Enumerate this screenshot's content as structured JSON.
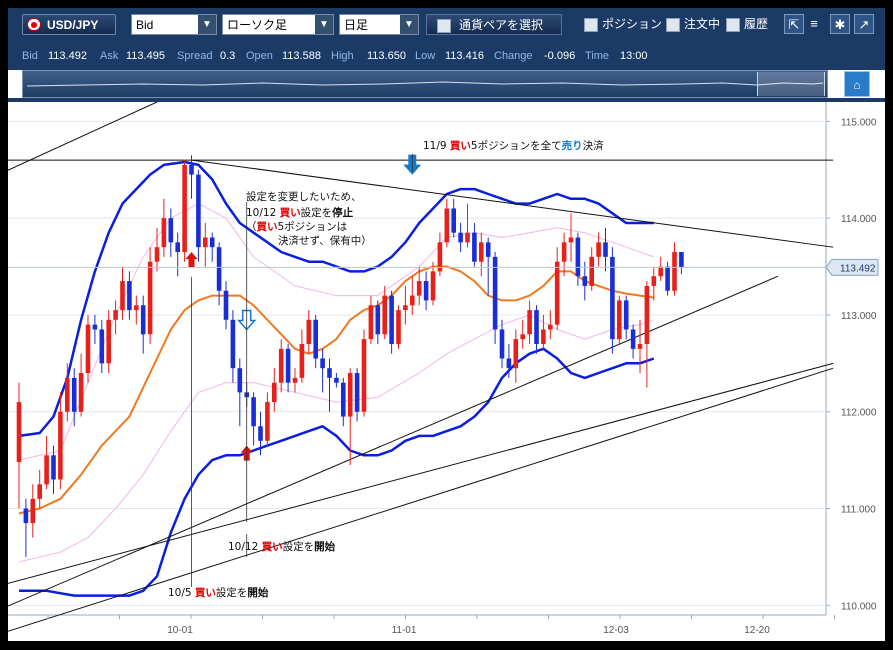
{
  "toolbar": {
    "pair": "USD/JPY",
    "price_type": "Bid",
    "chart_type": "ローソク足",
    "timeframe": "日足",
    "select_pair": "通貨ペアを選択",
    "positions": "ポジション",
    "orders": "注文中",
    "history": "履歴"
  },
  "quote": {
    "bid_label": "Bid",
    "bid": "113.492",
    "ask_label": "Ask",
    "ask": "113.495",
    "spread_label": "Spread",
    "spread": "0.3",
    "open_label": "Open",
    "open": "113.588",
    "high_label": "High",
    "high": "113.650",
    "low_label": "Low",
    "low": "113.416",
    "change_label": "Change",
    "change": "-0.096",
    "time_label": "Time",
    "time": "13:00"
  },
  "icons": {
    "flag": "usd-flag-icon",
    "dropdown": "chevron-down-icon",
    "chart_menu": "chart-menu-icon",
    "list": "list-icon",
    "settings": "gear-icon",
    "expand": "expand-icon",
    "home": "home-icon"
  },
  "colors": {
    "up": "#e8201c",
    "down": "#1a2ed8",
    "band_outer": "#0a1ee0",
    "band_inner": "#f4b6e8",
    "moving_average": "#f07820",
    "price_line": "#1e3c66",
    "annotation_red": "#e00000",
    "annotation_blue": "#1878c8"
  },
  "chart_data": {
    "type": "candlestick",
    "ylim": [
      109.9,
      115.2
    ],
    "yticks": [
      "115.000",
      "114.000",
      "113.000",
      "112.000",
      "111.000",
      "110.000"
    ],
    "xticks": [
      "10-01",
      "11-01",
      "12-03",
      "12-20"
    ],
    "current_price": "113.492",
    "candles": [
      [
        111.48,
        112.1,
        111.0,
        112.3
      ],
      [
        111.0,
        110.85,
        110.5,
        111.1
      ],
      [
        110.85,
        111.1,
        110.7,
        111.25
      ],
      [
        111.1,
        111.25,
        111.0,
        111.4
      ],
      [
        111.25,
        111.55,
        111.2,
        111.75
      ],
      [
        111.55,
        111.3,
        111.15,
        111.65
      ],
      [
        111.3,
        112.0,
        111.2,
        112.2
      ],
      [
        112.0,
        112.35,
        111.9,
        112.5
      ],
      [
        112.35,
        112.0,
        111.85,
        112.45
      ],
      [
        112.0,
        112.4,
        111.95,
        112.6
      ],
      [
        112.4,
        112.9,
        112.3,
        113.0
      ],
      [
        112.9,
        112.85,
        112.7,
        113.0
      ],
      [
        112.85,
        112.5,
        112.4,
        112.95
      ],
      [
        112.5,
        112.95,
        112.4,
        113.05
      ],
      [
        112.95,
        113.05,
        112.8,
        113.15
      ],
      [
        113.05,
        113.35,
        112.95,
        113.5
      ],
      [
        113.35,
        113.05,
        112.95,
        113.45
      ],
      [
        113.05,
        113.1,
        112.9,
        113.2
      ],
      [
        113.1,
        112.8,
        112.6,
        113.2
      ],
      [
        112.8,
        113.55,
        112.7,
        113.7
      ],
      [
        113.55,
        113.7,
        113.45,
        113.9
      ],
      [
        113.7,
        114.0,
        113.6,
        114.2
      ],
      [
        114.0,
        113.75,
        113.6,
        114.1
      ],
      [
        113.75,
        113.65,
        113.4,
        113.85
      ],
      [
        113.65,
        114.55,
        113.55,
        114.6
      ],
      [
        114.55,
        114.45,
        114.2,
        114.65
      ],
      [
        114.45,
        113.7,
        113.55,
        114.5
      ],
      [
        113.7,
        113.8,
        113.5,
        113.95
      ],
      [
        113.8,
        113.7,
        113.55,
        113.85
      ],
      [
        113.7,
        113.25,
        113.1,
        113.75
      ],
      [
        113.25,
        112.95,
        112.85,
        113.35
      ],
      [
        112.95,
        112.45,
        112.3,
        113.05
      ],
      [
        112.45,
        112.2,
        111.85,
        112.55
      ],
      [
        112.2,
        112.15,
        112.05,
        112.3
      ],
      [
        112.15,
        111.85,
        111.65,
        112.2
      ],
      [
        111.85,
        111.7,
        111.55,
        112.0
      ],
      [
        111.7,
        112.1,
        111.65,
        112.2
      ],
      [
        112.1,
        112.3,
        112.0,
        112.45
      ],
      [
        112.3,
        112.65,
        112.2,
        112.75
      ],
      [
        112.65,
        112.3,
        112.2,
        112.7
      ],
      [
        112.3,
        112.35,
        112.2,
        112.45
      ],
      [
        112.35,
        112.7,
        112.3,
        112.85
      ],
      [
        112.7,
        112.95,
        112.6,
        113.05
      ],
      [
        112.95,
        112.55,
        112.45,
        113.0
      ],
      [
        112.55,
        112.45,
        112.2,
        112.65
      ],
      [
        112.45,
        112.35,
        112.0,
        112.55
      ],
      [
        112.35,
        112.3,
        112.25,
        112.4
      ],
      [
        112.3,
        111.95,
        111.85,
        112.35
      ],
      [
        111.95,
        112.4,
        111.45,
        112.45
      ],
      [
        112.4,
        112.0,
        111.9,
        112.45
      ],
      [
        112.0,
        112.75,
        111.95,
        112.85
      ],
      [
        112.75,
        113.1,
        112.7,
        113.2
      ],
      [
        113.1,
        112.8,
        112.7,
        113.15
      ],
      [
        112.8,
        113.2,
        112.75,
        113.3
      ],
      [
        113.2,
        112.7,
        112.6,
        113.25
      ],
      [
        112.7,
        113.05,
        112.65,
        113.1
      ],
      [
        113.05,
        113.1,
        112.9,
        113.3
      ],
      [
        113.1,
        113.2,
        113.0,
        113.4
      ],
      [
        113.2,
        113.35,
        113.1,
        113.5
      ],
      [
        113.35,
        113.15,
        113.05,
        113.45
      ],
      [
        113.15,
        113.45,
        113.1,
        113.55
      ],
      [
        113.45,
        113.75,
        113.4,
        113.85
      ],
      [
        113.75,
        114.1,
        113.7,
        114.2
      ],
      [
        114.1,
        113.85,
        113.8,
        114.2
      ],
      [
        113.85,
        113.75,
        113.65,
        113.95
      ],
      [
        113.75,
        113.85,
        113.7,
        114.15
      ],
      [
        113.85,
        113.55,
        113.5,
        113.95
      ],
      [
        113.55,
        113.75,
        113.4,
        113.85
      ],
      [
        113.75,
        113.6,
        113.2,
        113.8
      ],
      [
        113.6,
        112.85,
        112.7,
        113.65
      ],
      [
        112.85,
        112.55,
        112.45,
        112.95
      ],
      [
        112.55,
        112.45,
        112.35,
        112.7
      ],
      [
        112.45,
        112.75,
        112.3,
        112.85
      ],
      [
        112.75,
        112.8,
        112.65,
        112.95
      ],
      [
        112.8,
        113.05,
        112.7,
        113.15
      ],
      [
        113.05,
        112.7,
        112.6,
        113.1
      ],
      [
        112.7,
        112.85,
        112.65,
        113.0
      ],
      [
        112.85,
        112.9,
        112.75,
        113.05
      ],
      [
        112.9,
        113.55,
        112.85,
        113.7
      ],
      [
        113.55,
        113.75,
        113.4,
        113.85
      ],
      [
        113.75,
        113.8,
        113.55,
        114.05
      ],
      [
        113.8,
        113.4,
        113.3,
        113.85
      ],
      [
        113.4,
        113.3,
        113.15,
        113.55
      ],
      [
        113.3,
        113.6,
        113.25,
        113.7
      ],
      [
        113.6,
        113.75,
        113.5,
        113.85
      ],
      [
        113.75,
        113.6,
        113.45,
        113.9
      ],
      [
        113.6,
        112.75,
        112.6,
        113.7
      ],
      [
        112.75,
        113.15,
        112.7,
        113.2
      ],
      [
        113.15,
        112.85,
        112.75,
        113.2
      ],
      [
        112.85,
        112.65,
        112.55,
        112.9
      ],
      [
        112.65,
        112.7,
        112.4,
        112.95
      ],
      [
        112.7,
        113.3,
        112.25,
        113.35
      ],
      [
        113.3,
        113.4,
        113.15,
        113.5
      ],
      [
        113.4,
        113.5,
        113.35,
        113.6
      ],
      [
        113.5,
        113.25,
        113.2,
        113.55
      ],
      [
        113.25,
        113.65,
        113.2,
        113.75
      ],
      [
        113.65,
        113.49,
        113.42,
        113.65
      ]
    ],
    "bollinger_upper": [
      [
        0,
        111.75
      ],
      [
        3,
        111.78
      ],
      [
        5,
        111.95
      ],
      [
        7,
        112.35
      ],
      [
        9,
        112.95
      ],
      [
        11,
        113.45
      ],
      [
        13,
        113.85
      ],
      [
        15,
        114.15
      ],
      [
        17,
        114.3
      ],
      [
        19,
        114.45
      ],
      [
        21,
        114.55
      ],
      [
        24,
        114.58
      ],
      [
        26,
        114.55
      ],
      [
        28,
        114.4
      ],
      [
        30,
        114.15
      ],
      [
        32,
        113.95
      ],
      [
        34,
        113.85
      ],
      [
        36,
        113.75
      ],
      [
        38,
        113.65
      ],
      [
        40,
        113.6
      ],
      [
        42,
        113.55
      ],
      [
        44,
        113.55
      ],
      [
        46,
        113.5
      ],
      [
        48,
        113.45
      ],
      [
        50,
        113.45
      ],
      [
        52,
        113.5
      ],
      [
        54,
        113.6
      ],
      [
        56,
        113.75
      ],
      [
        58,
        113.95
      ],
      [
        60,
        114.1
      ],
      [
        62,
        114.25
      ],
      [
        64,
        114.3
      ],
      [
        66,
        114.3
      ],
      [
        68,
        114.25
      ],
      [
        70,
        114.2
      ],
      [
        72,
        114.15
      ],
      [
        74,
        114.15
      ],
      [
        76,
        114.2
      ],
      [
        78,
        114.25
      ],
      [
        80,
        114.2
      ],
      [
        82,
        114.2
      ],
      [
        84,
        114.15
      ],
      [
        86,
        114.05
      ],
      [
        88,
        113.95
      ],
      [
        90,
        113.95
      ],
      [
        92,
        113.95
      ]
    ],
    "bollinger_lower": [
      [
        0,
        110.15
      ],
      [
        4,
        110.15
      ],
      [
        8,
        110.1
      ],
      [
        12,
        110.1
      ],
      [
        16,
        110.1
      ],
      [
        18,
        110.15
      ],
      [
        20,
        110.3
      ],
      [
        22,
        110.75
      ],
      [
        24,
        111.1
      ],
      [
        26,
        111.35
      ],
      [
        28,
        111.5
      ],
      [
        30,
        111.55
      ],
      [
        32,
        111.55
      ],
      [
        34,
        111.6
      ],
      [
        36,
        111.65
      ],
      [
        38,
        111.7
      ],
      [
        40,
        111.75
      ],
      [
        42,
        111.8
      ],
      [
        44,
        111.85
      ],
      [
        46,
        111.75
      ],
      [
        48,
        111.6
      ],
      [
        50,
        111.55
      ],
      [
        52,
        111.55
      ],
      [
        54,
        111.6
      ],
      [
        56,
        111.7
      ],
      [
        58,
        111.75
      ],
      [
        60,
        111.75
      ],
      [
        62,
        111.8
      ],
      [
        64,
        111.85
      ],
      [
        66,
        111.95
      ],
      [
        68,
        112.1
      ],
      [
        70,
        112.35
      ],
      [
        72,
        112.5
      ],
      [
        74,
        112.6
      ],
      [
        76,
        112.65
      ],
      [
        78,
        112.55
      ],
      [
        80,
        112.4
      ],
      [
        82,
        112.35
      ],
      [
        84,
        112.4
      ],
      [
        86,
        112.45
      ],
      [
        88,
        112.5
      ],
      [
        90,
        112.5
      ],
      [
        92,
        112.55
      ]
    ],
    "bollinger_inner_upper": [
      [
        0,
        111.5
      ],
      [
        6,
        111.6
      ],
      [
        10,
        112.3
      ],
      [
        14,
        113.0
      ],
      [
        18,
        113.6
      ],
      [
        22,
        114.0
      ],
      [
        26,
        114.15
      ],
      [
        30,
        114.0
      ],
      [
        34,
        113.6
      ],
      [
        40,
        113.3
      ],
      [
        46,
        113.2
      ],
      [
        52,
        113.2
      ],
      [
        58,
        113.5
      ],
      [
        62,
        113.8
      ],
      [
        66,
        113.85
      ],
      [
        70,
        113.8
      ],
      [
        74,
        113.85
      ],
      [
        78,
        113.9
      ],
      [
        82,
        113.85
      ],
      [
        86,
        113.75
      ],
      [
        90,
        113.65
      ],
      [
        92,
        113.6
      ]
    ],
    "bollinger_inner_lower": [
      [
        0,
        110.45
      ],
      [
        6,
        110.55
      ],
      [
        10,
        110.7
      ],
      [
        14,
        111.0
      ],
      [
        18,
        111.35
      ],
      [
        22,
        111.8
      ],
      [
        26,
        112.2
      ],
      [
        30,
        112.3
      ],
      [
        34,
        112.3
      ],
      [
        40,
        112.2
      ],
      [
        46,
        112.1
      ],
      [
        52,
        112.15
      ],
      [
        58,
        112.4
      ],
      [
        62,
        112.6
      ],
      [
        66,
        112.75
      ],
      [
        70,
        112.9
      ],
      [
        74,
        113.0
      ],
      [
        78,
        112.85
      ],
      [
        82,
        112.75
      ],
      [
        86,
        112.85
      ],
      [
        90,
        112.9
      ],
      [
        92,
        112.95
      ]
    ],
    "moving_average": [
      [
        0,
        110.95
      ],
      [
        3,
        111.0
      ],
      [
        6,
        111.1
      ],
      [
        9,
        111.35
      ],
      [
        12,
        111.65
      ],
      [
        14,
        111.8
      ],
      [
        16,
        111.95
      ],
      [
        18,
        112.25
      ],
      [
        20,
        112.55
      ],
      [
        22,
        112.85
      ],
      [
        24,
        113.05
      ],
      [
        26,
        113.15
      ],
      [
        28,
        113.2
      ],
      [
        30,
        113.2
      ],
      [
        32,
        113.2
      ],
      [
        34,
        113.1
      ],
      [
        36,
        112.95
      ],
      [
        38,
        112.8
      ],
      [
        40,
        112.65
      ],
      [
        42,
        112.6
      ],
      [
        44,
        112.65
      ],
      [
        46,
        112.75
      ],
      [
        48,
        112.95
      ],
      [
        50,
        113.05
      ],
      [
        52,
        113.1
      ],
      [
        54,
        113.2
      ],
      [
        56,
        113.35
      ],
      [
        58,
        113.45
      ],
      [
        60,
        113.5
      ],
      [
        62,
        113.5
      ],
      [
        64,
        113.45
      ],
      [
        66,
        113.35
      ],
      [
        68,
        113.2
      ],
      [
        70,
        113.15
      ],
      [
        72,
        113.15
      ],
      [
        74,
        113.2
      ],
      [
        76,
        113.3
      ],
      [
        78,
        113.45
      ],
      [
        80,
        113.45
      ],
      [
        82,
        113.35
      ],
      [
        84,
        113.3
      ],
      [
        86,
        113.25
      ],
      [
        88,
        113.22
      ],
      [
        90,
        113.2
      ],
      [
        92,
        113.18
      ]
    ],
    "trendlines": [
      [
        [
          -3,
          114.45
        ],
        [
          20,
          115.2
        ]
      ],
      [
        [
          -3,
          114.6
        ],
        [
          118,
          114.6
        ]
      ],
      [
        [
          25,
          114.6
        ],
        [
          118,
          113.7
        ]
      ],
      [
        [
          -3,
          109.95
        ],
        [
          110,
          113.4
        ]
      ],
      [
        [
          -3,
          110.2
        ],
        [
          118,
          112.5
        ]
      ],
      [
        [
          -3,
          109.7
        ],
        [
          118,
          112.45
        ]
      ]
    ],
    "signals": [
      {
        "type": "buy",
        "index": 25,
        "price": 113.65
      },
      {
        "type": "buy",
        "index": 33,
        "price": 111.65
      },
      {
        "type": "sell",
        "index": 57,
        "price": 114.45
      },
      {
        "type": "sell_outline",
        "index": 33,
        "price": 112.85
      }
    ],
    "annotations": {
      "a1": {
        "date": "11/9",
        "buy": "買い",
        "t1": "5ポジションを全て",
        "sell": "売り",
        "t2": "決済"
      },
      "a2": {
        "l1": "設定を変更したいため、",
        "date": "10/12",
        "buy": "買い",
        "t1": "設定を",
        "stop": "停止",
        "l3_open": "（",
        "l3_buy": "買い",
        "l3_rest": "5ポジションは",
        "l4": "決済せず、保有中）"
      },
      "a3": {
        "date": "10/12",
        "buy": "買い",
        "t1": "設定を",
        "start": "開始"
      },
      "a4": {
        "date": "10/5",
        "buy": "買い",
        "t1": "設定を",
        "start": "開始"
      }
    }
  }
}
